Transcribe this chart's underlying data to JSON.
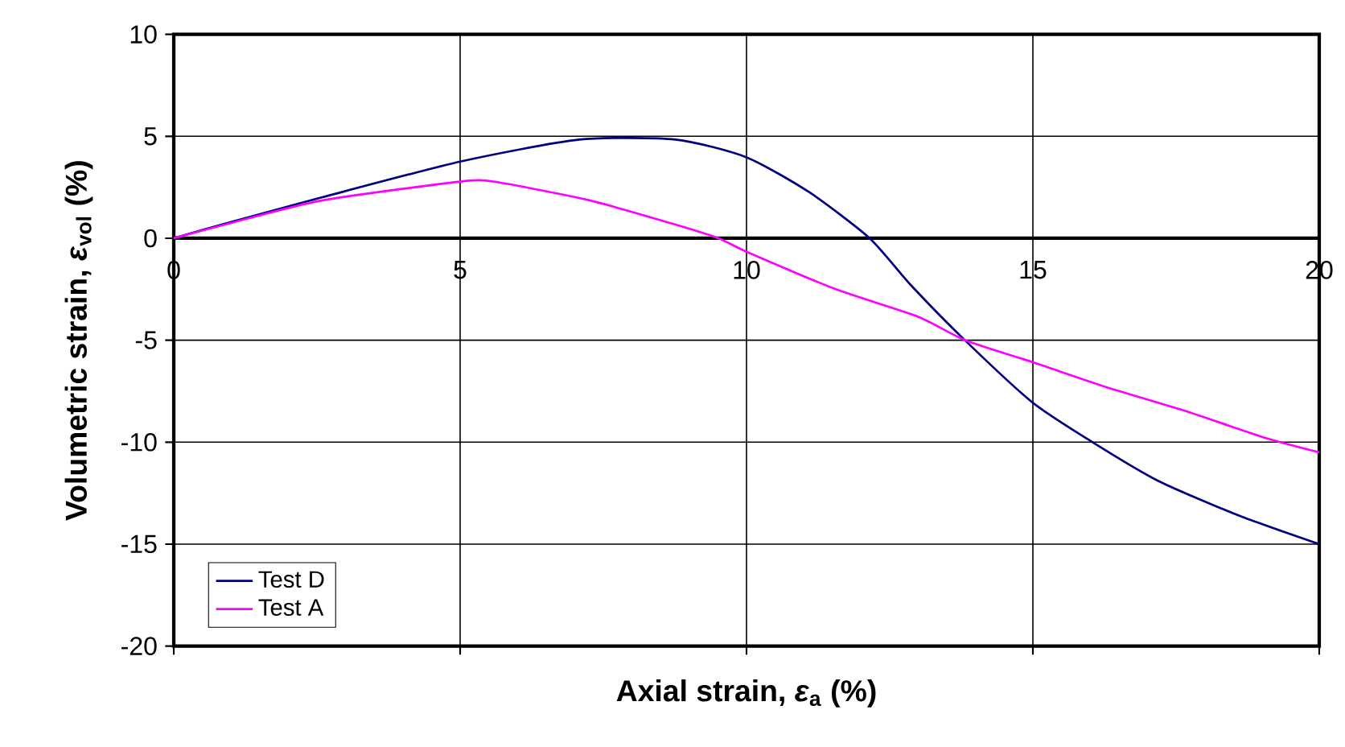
{
  "chart_data": {
    "type": "line",
    "xlabel": "Axial strain, *ε*$_{a}$ (%)",
    "ylabel": "Volumetric strain, *ε*$_{vol}$ (%)",
    "xlim": [
      0,
      20
    ],
    "ylim": [
      -20,
      10
    ],
    "xticks": [
      0,
      5,
      10,
      15,
      20
    ],
    "yticks": [
      -20,
      -15,
      -10,
      -5,
      0,
      5,
      10
    ],
    "grid": true,
    "legend": "bottom left",
    "marker": "none",
    "line_style": "solid",
    "series": [
      {
        "name": "Test D",
        "color": "#000080",
        "x": [
          0,
          1,
          2.58,
          5,
          7.08,
          8.76,
          10,
          11.1,
          12.15,
          12.88,
          13.82,
          15,
          16.07,
          17.19,
          18.6,
          20
        ],
        "values": [
          0,
          0.8,
          2.0,
          3.76,
          4.84,
          4.84,
          3.97,
          2.25,
          0,
          -2.33,
          -5.02,
          -8.07,
          -10.05,
          -11.9,
          -13.6,
          -15
        ]
      },
      {
        "name": "Test A",
        "color": "#ff00ff",
        "x": [
          0,
          1,
          2.58,
          5,
          5.58,
          7.26,
          8.76,
          9.51,
          10,
          11.57,
          12.98,
          13.82,
          15,
          16.25,
          17.65,
          19.06,
          20
        ],
        "values": [
          0,
          0.75,
          1.85,
          2.78,
          2.78,
          1.86,
          0.67,
          0,
          -0.66,
          -2.51,
          -3.83,
          -5.0,
          -6.08,
          -7.27,
          -8.46,
          -9.79,
          -10.5
        ]
      }
    ]
  }
}
